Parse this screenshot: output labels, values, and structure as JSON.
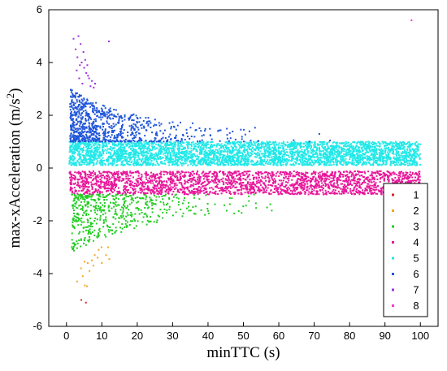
{
  "chart_data": {
    "type": "scatter",
    "xlabel": "minTTC (s)",
    "ylabel": "max-xAcceleration (m/s²)",
    "ylabel_base": "max-xAcceleration (m/s",
    "ylabel_sup": "2",
    "ylabel_close": ")",
    "xlim": [
      -5,
      105
    ],
    "ylim": [
      -6,
      6
    ],
    "xticks": [
      0,
      10,
      20,
      30,
      40,
      50,
      60,
      70,
      80,
      90,
      100
    ],
    "yticks": [
      -6,
      -4,
      -2,
      0,
      2,
      4,
      6
    ],
    "grid": false,
    "legend_position": "lower-right",
    "series": [
      {
        "name": "1",
        "color": "#d62728",
        "points": [
          [
            5.5,
            -5.1
          ],
          [
            4.2,
            -5.0
          ]
        ]
      },
      {
        "name": "2",
        "color": "#f5a623",
        "points": [
          [
            3.0,
            -4.3
          ],
          [
            5.2,
            -4.45
          ],
          [
            5.8,
            -4.48
          ],
          [
            4.1,
            -3.8
          ],
          [
            6.0,
            -3.6
          ],
          [
            7.2,
            -3.5
          ],
          [
            8.0,
            -3.3
          ],
          [
            9.1,
            -3.1
          ],
          [
            10.0,
            -3.6
          ],
          [
            11.2,
            -3.3
          ],
          [
            12.1,
            -3.45
          ],
          [
            6.5,
            -3.9
          ],
          [
            8.8,
            -3.4
          ],
          [
            7.6,
            -3.7
          ],
          [
            9.9,
            -3.0
          ],
          [
            5.1,
            -3.55
          ],
          [
            11.8,
            -3.0
          ],
          [
            4.6,
            -4.1
          ]
        ]
      },
      {
        "name": "3",
        "color": "#22cc22",
        "gen": {
          "xmin": 1.5,
          "xmax": 60,
          "ymin": -3.2,
          "ymax": -1.0,
          "count": 520,
          "decay": 14
        }
      },
      {
        "name": "4",
        "color": "#e8179a",
        "gen": {
          "xmin": 0.8,
          "xmax": 100,
          "ymin": -1.0,
          "ymax": -0.12,
          "count": 2300,
          "decay": 0
        }
      },
      {
        "name": "5",
        "color": "#22e8e8",
        "gen": {
          "xmin": 0.8,
          "xmax": 100,
          "ymin": 0.1,
          "ymax": 1.0,
          "count": 3600,
          "decay": 0
        }
      },
      {
        "name": "6",
        "color": "#1f55d9",
        "gen": {
          "xmin": 1.0,
          "xmax": 90,
          "ymin": 1.0,
          "ymax": 3.0,
          "count": 820,
          "decay": 11
        }
      },
      {
        "name": "7",
        "color": "#9b30e0",
        "points": [
          [
            2.0,
            4.9
          ],
          [
            2.6,
            4.5
          ],
          [
            3.1,
            4.2
          ],
          [
            3.4,
            5.0
          ],
          [
            4.0,
            4.7
          ],
          [
            4.3,
            4.0
          ],
          [
            5.0,
            3.8
          ],
          [
            5.6,
            3.6
          ],
          [
            6.1,
            3.5
          ],
          [
            7.2,
            3.3
          ],
          [
            3.8,
            3.9
          ],
          [
            6.8,
            3.1
          ],
          [
            4.8,
            4.4
          ],
          [
            2.9,
            3.7
          ],
          [
            5.3,
            4.1
          ],
          [
            8.1,
            3.2
          ],
          [
            12.0,
            4.8
          ],
          [
            3.6,
            3.4
          ],
          [
            4.5,
            3.2
          ],
          [
            6.4,
            3.4
          ],
          [
            7.7,
            3.05
          ],
          [
            5.9,
            3.9
          ]
        ]
      },
      {
        "name": "8",
        "color": "#ff33cc",
        "points": [
          [
            97.5,
            5.6
          ]
        ]
      }
    ]
  }
}
